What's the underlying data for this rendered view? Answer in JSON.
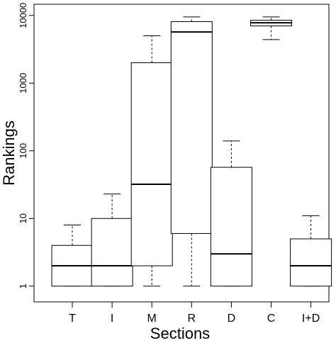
{
  "chart_data": {
    "type": "box",
    "xlabel": "Sections",
    "ylabel": "Rankings",
    "y_scale": "log10",
    "ylim": [
      0.82,
      11500
    ],
    "yticks": [
      1,
      10,
      100,
      1000,
      10000
    ],
    "ytick_labels": [
      "1",
      "10",
      "100",
      "1000",
      "10000"
    ],
    "categories": [
      "T",
      "I",
      "M",
      "R",
      "D",
      "C",
      "I+D"
    ],
    "boxes": [
      {
        "label": "T",
        "whisker_low": 1,
        "q1": 1,
        "median": 2,
        "q3": 4,
        "whisker_high": 8
      },
      {
        "label": "I",
        "whisker_low": 1,
        "q1": 1,
        "median": 2,
        "q3": 10,
        "whisker_high": 23
      },
      {
        "label": "M",
        "whisker_low": 1,
        "q1": 2,
        "median": 32,
        "q3": 2000,
        "whisker_high": 5000
      },
      {
        "label": "R",
        "whisker_low": 1,
        "q1": 6,
        "median": 5700,
        "q3": 8100,
        "whisker_high": 9500
      },
      {
        "label": "D",
        "whisker_low": 1,
        "q1": 1,
        "median": 3,
        "q3": 57,
        "whisker_high": 140
      },
      {
        "label": "C",
        "whisker_low": 4400,
        "q1": 7000,
        "median": 7800,
        "q3": 8500,
        "whisker_high": 9500
      },
      {
        "label": "I+D",
        "whisker_low": 1,
        "q1": 1,
        "median": 2,
        "q3": 5,
        "whisker_high": 11
      }
    ],
    "grid": false,
    "colors": {
      "box_fill": "#ffffff",
      "stroke": "#000000"
    }
  }
}
